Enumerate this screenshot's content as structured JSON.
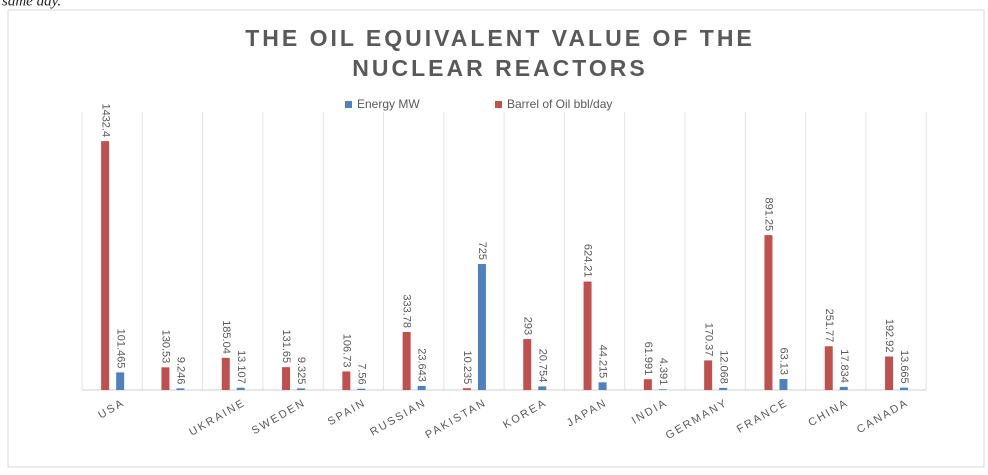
{
  "header_text": "same day.",
  "chart_data": {
    "type": "bar",
    "title": "THE OIL EQUIVALENT VALUE OF THE",
    "title_line2": "NUCLEAR REACTORS",
    "categories": [
      "USA",
      null,
      "UKRAINE",
      "SWEDEN",
      "SPAIN",
      "RUSSIAN",
      "PAKISTAN",
      "KOREA",
      "JAPAN",
      "INDIA",
      "GERMANY",
      "FRANCE",
      "CHINA",
      "CANADA"
    ],
    "series": [
      {
        "name": "Energy MW",
        "color": "#4f81bd",
        "values": [
          101.465,
          9.246,
          13.107,
          9.325,
          7.56,
          23.643,
          725,
          20.754,
          44.215,
          4.391,
          12.068,
          63.13,
          17.834,
          13.665
        ]
      },
      {
        "name": "Barrel of Oil bbl/day",
        "color": "#c0504d",
        "values": [
          1432.4,
          130.53,
          185.04,
          131.65,
          106.73,
          333.78,
          10.235,
          293,
          624.21,
          61.991,
          170.37,
          891.25,
          251.77,
          192.92
        ]
      }
    ],
    "ylim": [
      0,
      1600
    ],
    "legend": "top"
  }
}
